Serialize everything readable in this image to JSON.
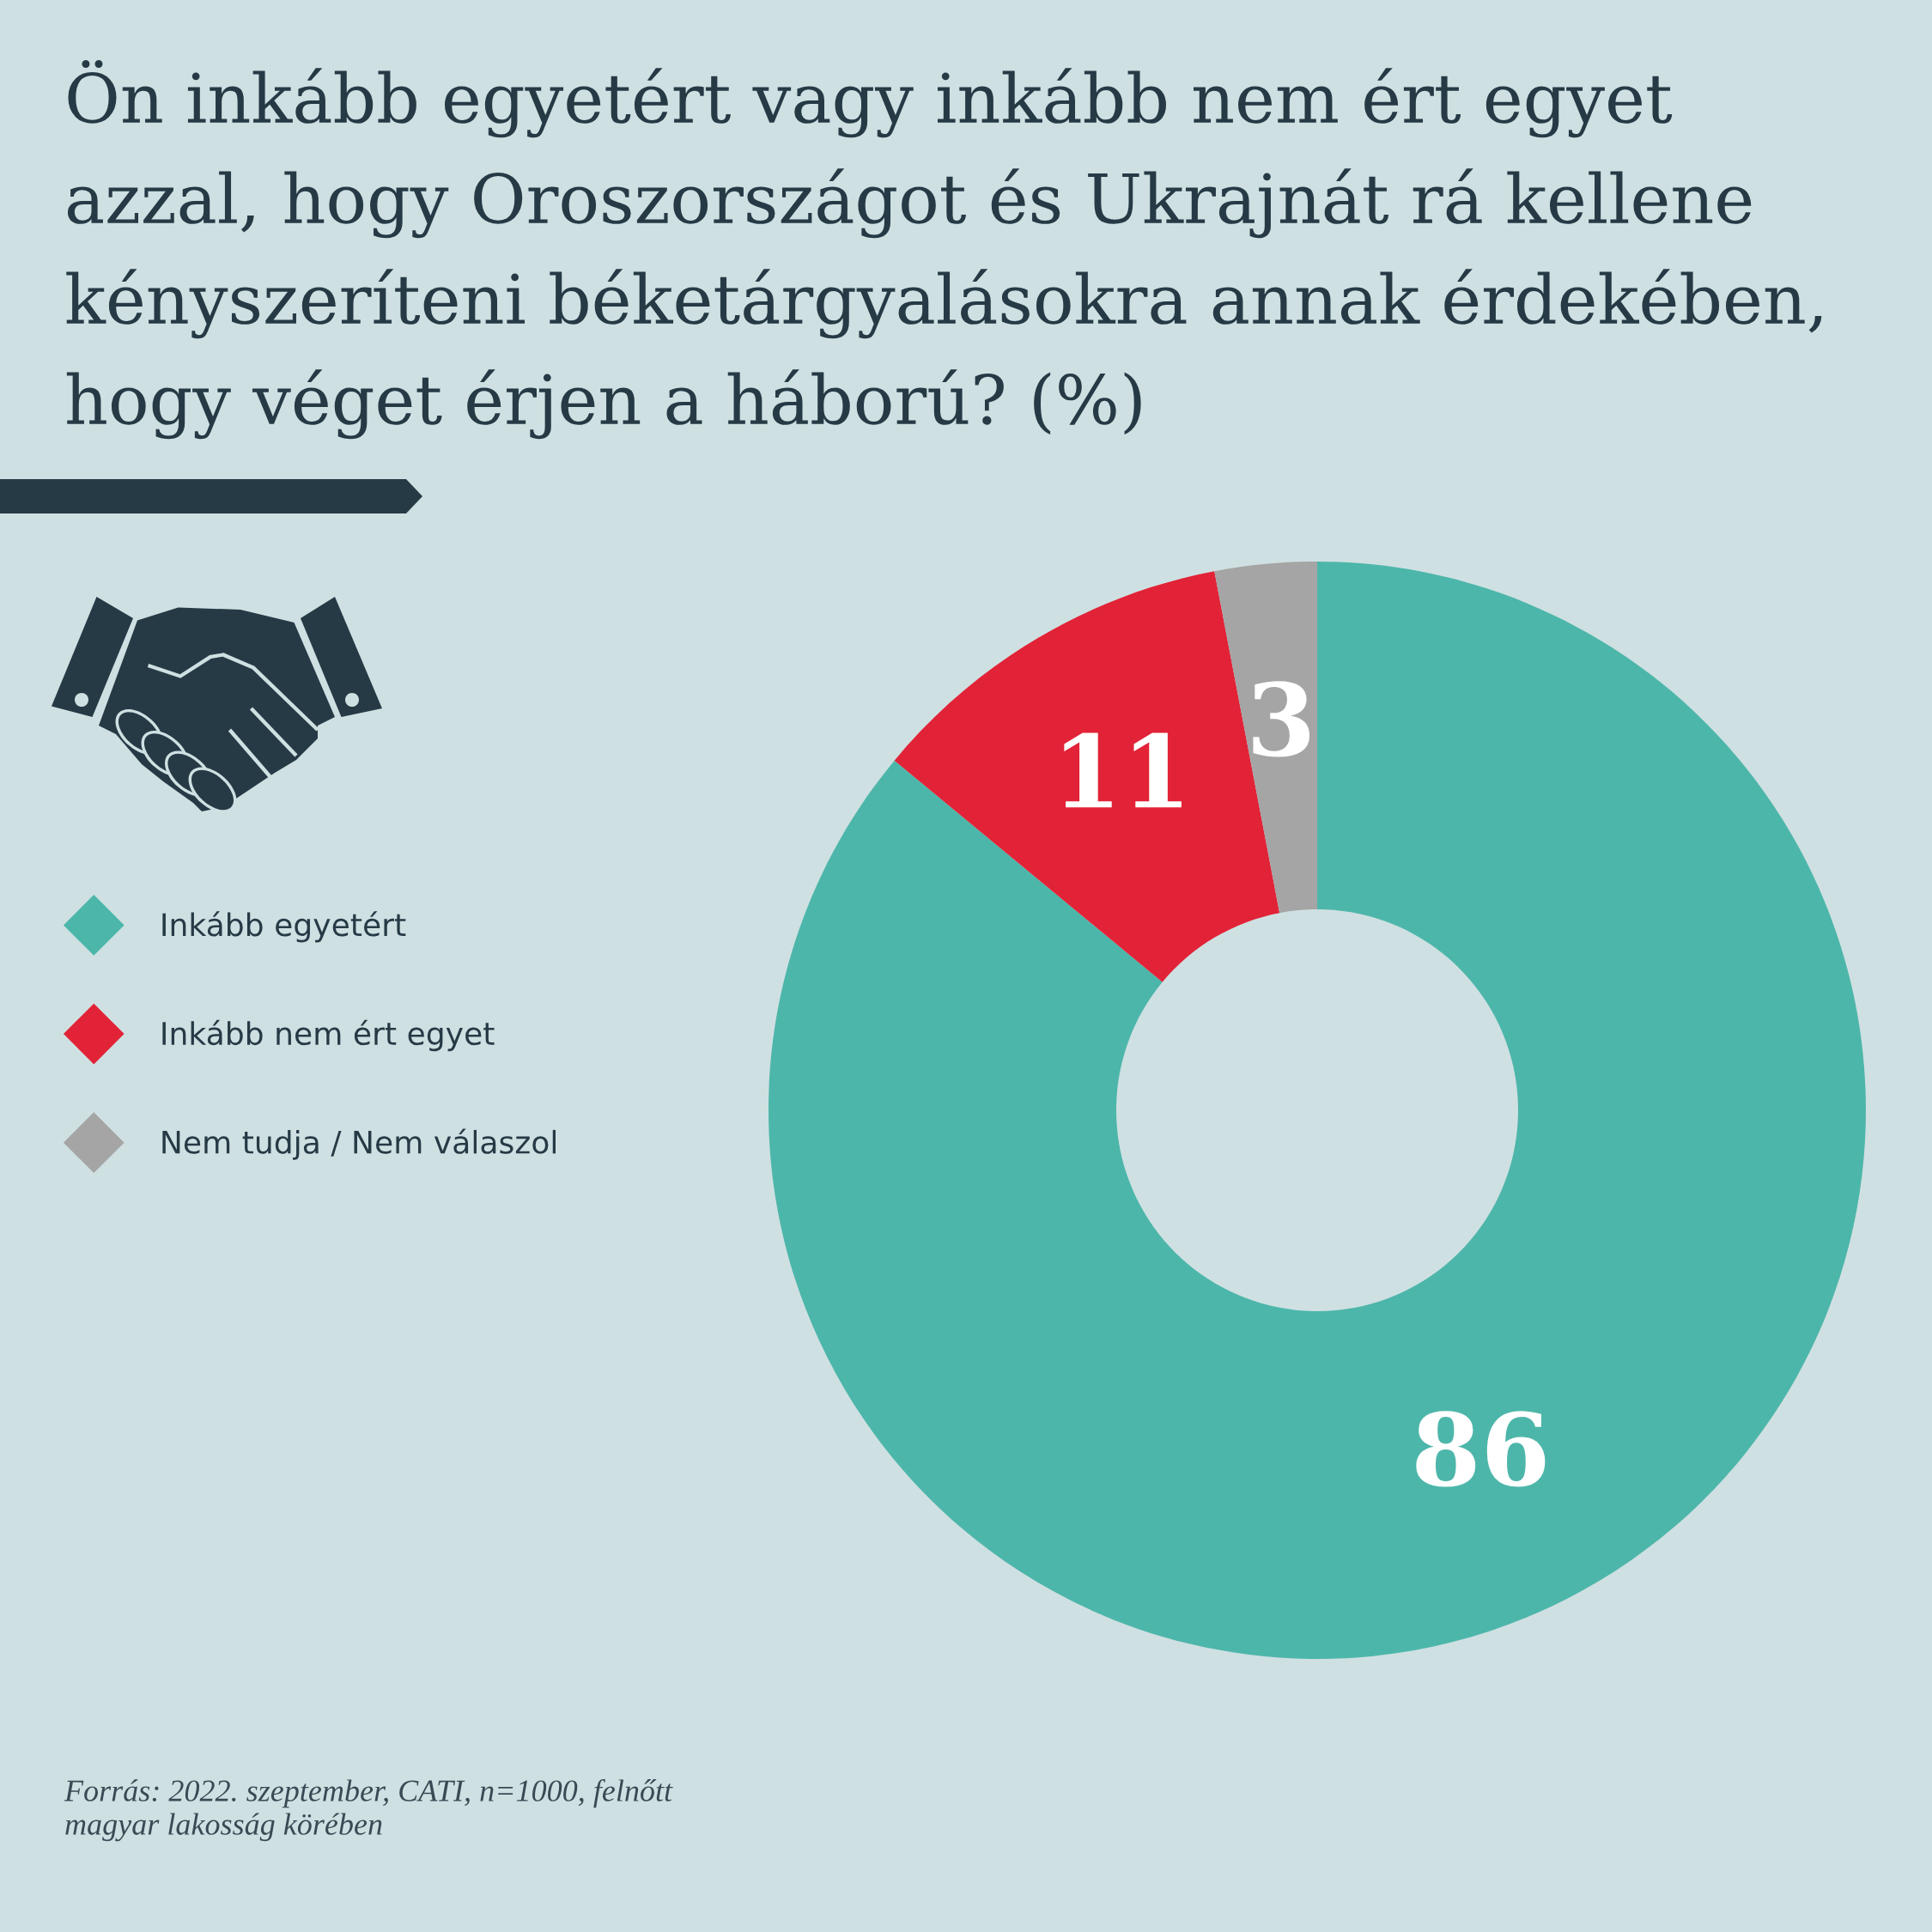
{
  "chart_data": {
    "type": "donut",
    "title": "Ön inkább egyetért vagy inkább nem ért egyet azzal, hogy Oroszországot és Ukrajnát rá kellene kényszeríteni béketárgyalásokra annak érdekében, hogy véget érjen a háború? (%)",
    "categories": [
      "Inkább egyetért",
      "Inkább nem ért egyet",
      "Nem tudja / Nem válaszol"
    ],
    "values": [
      86,
      11,
      3
    ],
    "colors": [
      "#4db6aa",
      "#e22337",
      "#a5a5a5"
    ],
    "data_labels": true,
    "legend": "left",
    "annotations": [
      "Forrás: 2022. szeptember, CATI, n=1000, felnőtt magyar lakosság körében"
    ]
  }
}
